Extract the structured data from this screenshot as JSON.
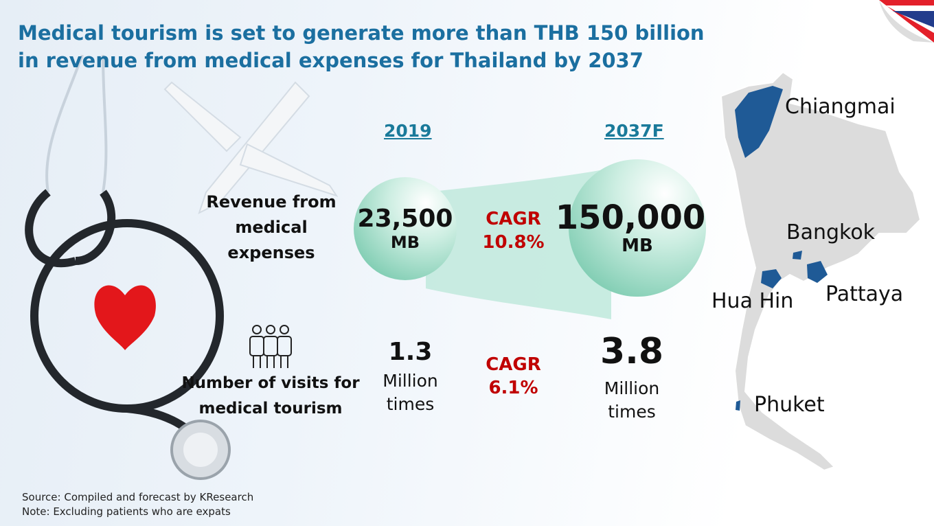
{
  "title": "Medical tourism is set to generate more than THB 150 billion in revenue from medical expenses for Thailand by 2037",
  "years": {
    "base": "2019",
    "forecast": "2037F"
  },
  "revenue": {
    "label": "Revenue from medical expenses",
    "base_value": "23,500",
    "base_unit": "MB",
    "cagr_label": "CAGR",
    "cagr_value": "10.8%",
    "forecast_value": "150,000",
    "forecast_unit": "MB"
  },
  "visits": {
    "label": "Number of visits for medical tourism",
    "base_value": "1.3",
    "base_unit": "Million times",
    "cagr_label": "CAGR",
    "cagr_value": "6.1%",
    "forecast_value": "3.8",
    "forecast_unit": "Million times"
  },
  "map": {
    "locations": [
      "Chiangmai",
      "Bangkok",
      "Hua Hin",
      "Pattaya",
      "Phuket"
    ],
    "highlight_color": "#1f5a96"
  },
  "footer": {
    "source": "Source: Compiled and forecast by KResearch",
    "note": "Note: Excluding patients who are expats"
  }
}
